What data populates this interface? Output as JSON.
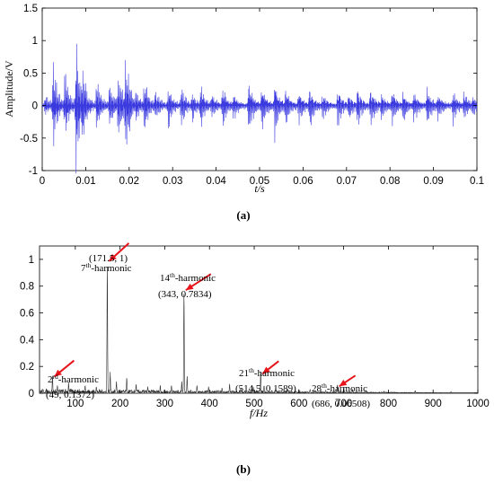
{
  "chart_data": [
    {
      "type": "line",
      "caption": "(a)",
      "xlabel": "t/s",
      "ylabel": "Amplitude/V",
      "xlim": [
        0,
        0.1
      ],
      "ylim": [
        -1,
        1.5
      ],
      "xticks": [
        "0",
        "0.01",
        "0.02",
        "0.03",
        "0.04",
        "0.05",
        "0.06",
        "0.07",
        "0.08",
        "0.09",
        "0.1"
      ],
      "yticks": [
        "-1",
        "-0.5",
        "0",
        "0.5",
        "1",
        "1.5"
      ],
      "series_color": "#3a3adf",
      "bursts": [
        {
          "t": 0.0007,
          "a": 0.14
        },
        {
          "t": 0.0025,
          "a": 0.72
        },
        {
          "t": 0.0052,
          "a": 0.55
        },
        {
          "t": 0.0078,
          "a": 1.1
        },
        {
          "t": 0.0093,
          "a": 0.42
        },
        {
          "t": 0.0125,
          "a": 0.4
        },
        {
          "t": 0.0155,
          "a": 0.38
        },
        {
          "t": 0.0175,
          "a": 0.5
        },
        {
          "t": 0.0192,
          "a": 0.82
        },
        {
          "t": 0.0215,
          "a": 0.18
        },
        {
          "t": 0.0235,
          "a": 0.42
        },
        {
          "t": 0.026,
          "a": 0.22
        },
        {
          "t": 0.029,
          "a": 0.32
        },
        {
          "t": 0.032,
          "a": 0.3
        },
        {
          "t": 0.0345,
          "a": 0.22
        },
        {
          "t": 0.0365,
          "a": 0.3
        },
        {
          "t": 0.039,
          "a": 0.2
        },
        {
          "t": 0.0415,
          "a": 0.32
        },
        {
          "t": 0.044,
          "a": 0.18
        },
        {
          "t": 0.0475,
          "a": 0.44
        },
        {
          "t": 0.0505,
          "a": 0.36
        },
        {
          "t": 0.0535,
          "a": 0.42
        },
        {
          "t": 0.056,
          "a": 0.28
        },
        {
          "t": 0.059,
          "a": 0.24
        },
        {
          "t": 0.0615,
          "a": 0.32
        },
        {
          "t": 0.0645,
          "a": 0.22
        },
        {
          "t": 0.068,
          "a": 0.3
        },
        {
          "t": 0.0705,
          "a": 0.22
        },
        {
          "t": 0.0725,
          "a": 0.3
        },
        {
          "t": 0.0755,
          "a": 0.32
        },
        {
          "t": 0.078,
          "a": 0.2
        },
        {
          "t": 0.0805,
          "a": 0.26
        },
        {
          "t": 0.083,
          "a": 0.2
        },
        {
          "t": 0.0855,
          "a": 0.22
        },
        {
          "t": 0.0885,
          "a": 0.3
        },
        {
          "t": 0.091,
          "a": 0.2
        },
        {
          "t": 0.0945,
          "a": 0.25
        },
        {
          "t": 0.097,
          "a": 0.2
        },
        {
          "t": 0.099,
          "a": 0.16
        }
      ]
    },
    {
      "type": "line",
      "caption": "(b)",
      "xlabel": "f/Hz",
      "ylabel": "",
      "xlim": [
        20,
        1000
      ],
      "ylim": [
        0,
        1.1
      ],
      "xticks": [
        "100",
        "200",
        "300",
        "400",
        "500",
        "600",
        "700",
        "800",
        "900",
        "1000"
      ],
      "yticks": [
        "0",
        "0.2",
        "0.4",
        "0.6",
        "0.8",
        "1"
      ],
      "series_color": "#333333",
      "arrow_color": "#e8141b",
      "peaks": [
        {
          "f": 49,
          "a": 0.1372
        },
        {
          "f": 171.5,
          "a": 1
        },
        {
          "f": 343,
          "a": 0.7834
        },
        {
          "f": 514.5,
          "a": 0.1589
        },
        {
          "f": 686,
          "a": 0.06508
        },
        {
          "f": 60,
          "a": 0.06
        },
        {
          "f": 85,
          "a": 0.08
        },
        {
          "f": 122,
          "a": 0.06
        },
        {
          "f": 147,
          "a": 0.05
        },
        {
          "f": 178,
          "a": 0.16
        },
        {
          "f": 192,
          "a": 0.09
        },
        {
          "f": 215,
          "a": 0.12
        },
        {
          "f": 236,
          "a": 0.07
        },
        {
          "f": 262,
          "a": 0.05
        },
        {
          "f": 290,
          "a": 0.06
        },
        {
          "f": 315,
          "a": 0.06
        },
        {
          "f": 338,
          "a": 0.09
        },
        {
          "f": 350,
          "a": 0.13
        },
        {
          "f": 372,
          "a": 0.06
        },
        {
          "f": 398,
          "a": 0.05
        },
        {
          "f": 428,
          "a": 0.04
        },
        {
          "f": 445,
          "a": 0.07
        },
        {
          "f": 470,
          "a": 0.04
        },
        {
          "f": 498,
          "a": 0.05
        },
        {
          "f": 522,
          "a": 0.06
        },
        {
          "f": 548,
          "a": 0.04
        },
        {
          "f": 575,
          "a": 0.03
        },
        {
          "f": 600,
          "a": 0.03
        },
        {
          "f": 625,
          "a": 0.03
        },
        {
          "f": 660,
          "a": 0.02
        },
        {
          "f": 700,
          "a": 0.04
        },
        {
          "f": 720,
          "a": 0.03
        },
        {
          "f": 750,
          "a": 0.02
        },
        {
          "f": 790,
          "a": 0.015
        },
        {
          "f": 860,
          "a": 0.02
        },
        {
          "f": 940,
          "a": 0.012
        }
      ],
      "annotations": [
        {
          "pre": "2",
          "sup": "rd",
          "post": "-harmonic",
          "value": "(49, 0.1372)"
        },
        {
          "pre": "7",
          "sup": "th",
          "post": "-harmonic",
          "value": "(171.5, 1)"
        },
        {
          "pre": "14",
          "sup": "th",
          "post": "-harmonic",
          "value": "(343, 0.7834)"
        },
        {
          "pre": "21",
          "sup": "th",
          "post": "-harmonic",
          "value": "(514.5, 0.1589)"
        },
        {
          "pre": "28",
          "sup": "th",
          "post": "-harmonic",
          "value": "(686, 0.06508)"
        }
      ]
    }
  ]
}
